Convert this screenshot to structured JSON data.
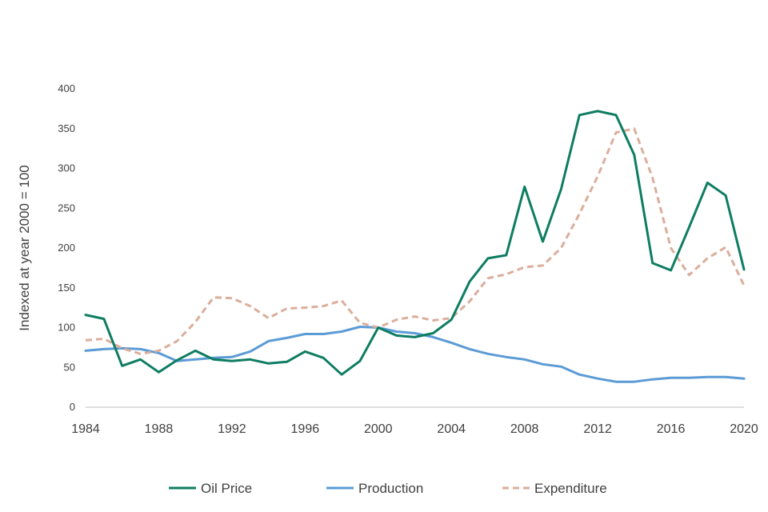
{
  "chart_data": {
    "type": "line",
    "title": "",
    "xlabel": "",
    "ylabel": "Indexed  at year 2000 = 100",
    "x": [
      1984,
      1985,
      1986,
      1987,
      1988,
      1989,
      1990,
      1991,
      1992,
      1993,
      1994,
      1995,
      1996,
      1997,
      1998,
      1999,
      2000,
      2001,
      2002,
      2003,
      2004,
      2005,
      2006,
      2007,
      2008,
      2009,
      2010,
      2011,
      2012,
      2013,
      2014,
      2015,
      2016,
      2017,
      2018,
      2019,
      2020
    ],
    "xlim": [
      1984,
      2020
    ],
    "xticks": [
      "1984",
      "1988",
      "1992",
      "1996",
      "2000",
      "2004",
      "2008",
      "2012",
      "2016",
      "2020"
    ],
    "ylim": [
      0,
      400
    ],
    "yticks": [
      "0",
      "50",
      "100",
      "150",
      "200",
      "250",
      "300",
      "350",
      "400"
    ],
    "grid": false,
    "legend_position": "bottom",
    "series": [
      {
        "name": "Oil Price",
        "color": "#0e7d62",
        "style": "solid",
        "values": [
          116,
          111,
          52,
          60,
          44,
          59,
          71,
          60,
          58,
          60,
          55,
          57,
          70,
          62,
          41,
          58,
          100,
          90,
          88,
          93,
          110,
          158,
          187,
          191,
          277,
          208,
          274,
          367,
          372,
          367,
          317,
          181,
          172,
          226,
          282,
          266,
          173
        ]
      },
      {
        "name": "Production",
        "color": "#5b9bd5",
        "style": "solid",
        "values": [
          71,
          73,
          74,
          73,
          68,
          58,
          60,
          62,
          63,
          70,
          83,
          87,
          92,
          92,
          95,
          101,
          100,
          95,
          93,
          88,
          81,
          73,
          67,
          63,
          60,
          54,
          51,
          41,
          36,
          32,
          32,
          35,
          37,
          37,
          38,
          38,
          36
        ]
      },
      {
        "name": "Expenditure",
        "color": "#dbae9c",
        "style": "dashed",
        "values": [
          84,
          86,
          74,
          67,
          71,
          83,
          107,
          138,
          137,
          127,
          112,
          124,
          125,
          127,
          134,
          106,
          100,
          110,
          114,
          109,
          112,
          133,
          162,
          167,
          176,
          178,
          200,
          243,
          290,
          345,
          350,
          288,
          200,
          166,
          187,
          201,
          153
        ]
      }
    ]
  }
}
